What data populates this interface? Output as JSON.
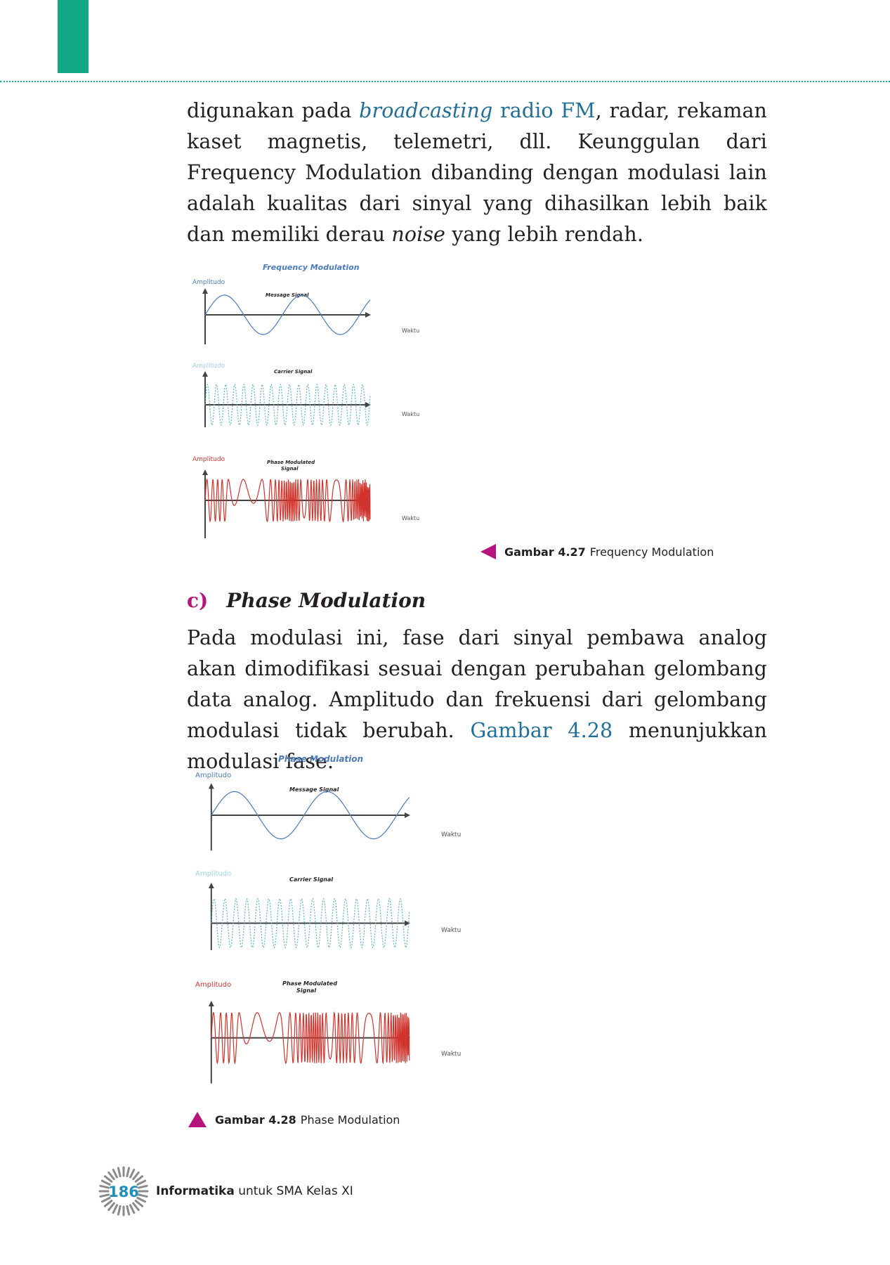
{
  "header": {
    "accent": "#12a883"
  },
  "paragraph1": {
    "t1": "digunakan pada ",
    "t2": "broadcasting",
    "t3": " radio FM",
    "t4": ", radar, rekaman kaset magnetis, telemetri, dll. Keunggulan dari Frequency Modulation dibanding dengan modulasi lain adalah kualitas dari sinyal yang dihasilkan lebih baik dan memiliki derau ",
    "t5": "noise",
    "t6": " yang lebih rendah."
  },
  "figure1": {
    "title": "Frequency Modulation",
    "message_label": "Message Signal",
    "carrier_label": "Carrier Signal",
    "modulated_label_1": "Phase Modulated",
    "modulated_label_2": "Signal",
    "amplitude": "Amplitudo",
    "time": "Waktu",
    "caption_num": "Gambar 4.27",
    "caption_text": "Frequency Modulation"
  },
  "section": {
    "letter": "c)",
    "title": "Phase Modulation"
  },
  "paragraph2": {
    "t1": "Pada modulasi ini, fase dari sinyal pembawa analog akan dimodifikasi sesuai dengan perubahan gelombang data analog. Amplitudo dan frekuensi dari gelombang modulasi tidak berubah. ",
    "t2": "Gambar 4.28",
    "t3": " menunjukkan modulasi fase."
  },
  "figure2": {
    "title": "Phase Modulation",
    "message_label": "Message Signal",
    "carrier_label": "Carrier Signal",
    "modulated_label_1": "Phase Modulated",
    "modulated_label_2": "Signal",
    "amplitude": "Amplitudo",
    "time": "Waktu",
    "caption_num": "Gambar 4.28",
    "caption_text": "Phase Modulation"
  },
  "footer": {
    "page": "186",
    "book_bold": "Informatika",
    "book_rest": " untuk SMA Kelas XI"
  },
  "colors": {
    "magenta": "#b5157a",
    "message": "#4a7bbd",
    "carrier": "#5ab4c9",
    "modulated": "#d0342c",
    "link": "#1f6f9a"
  }
}
